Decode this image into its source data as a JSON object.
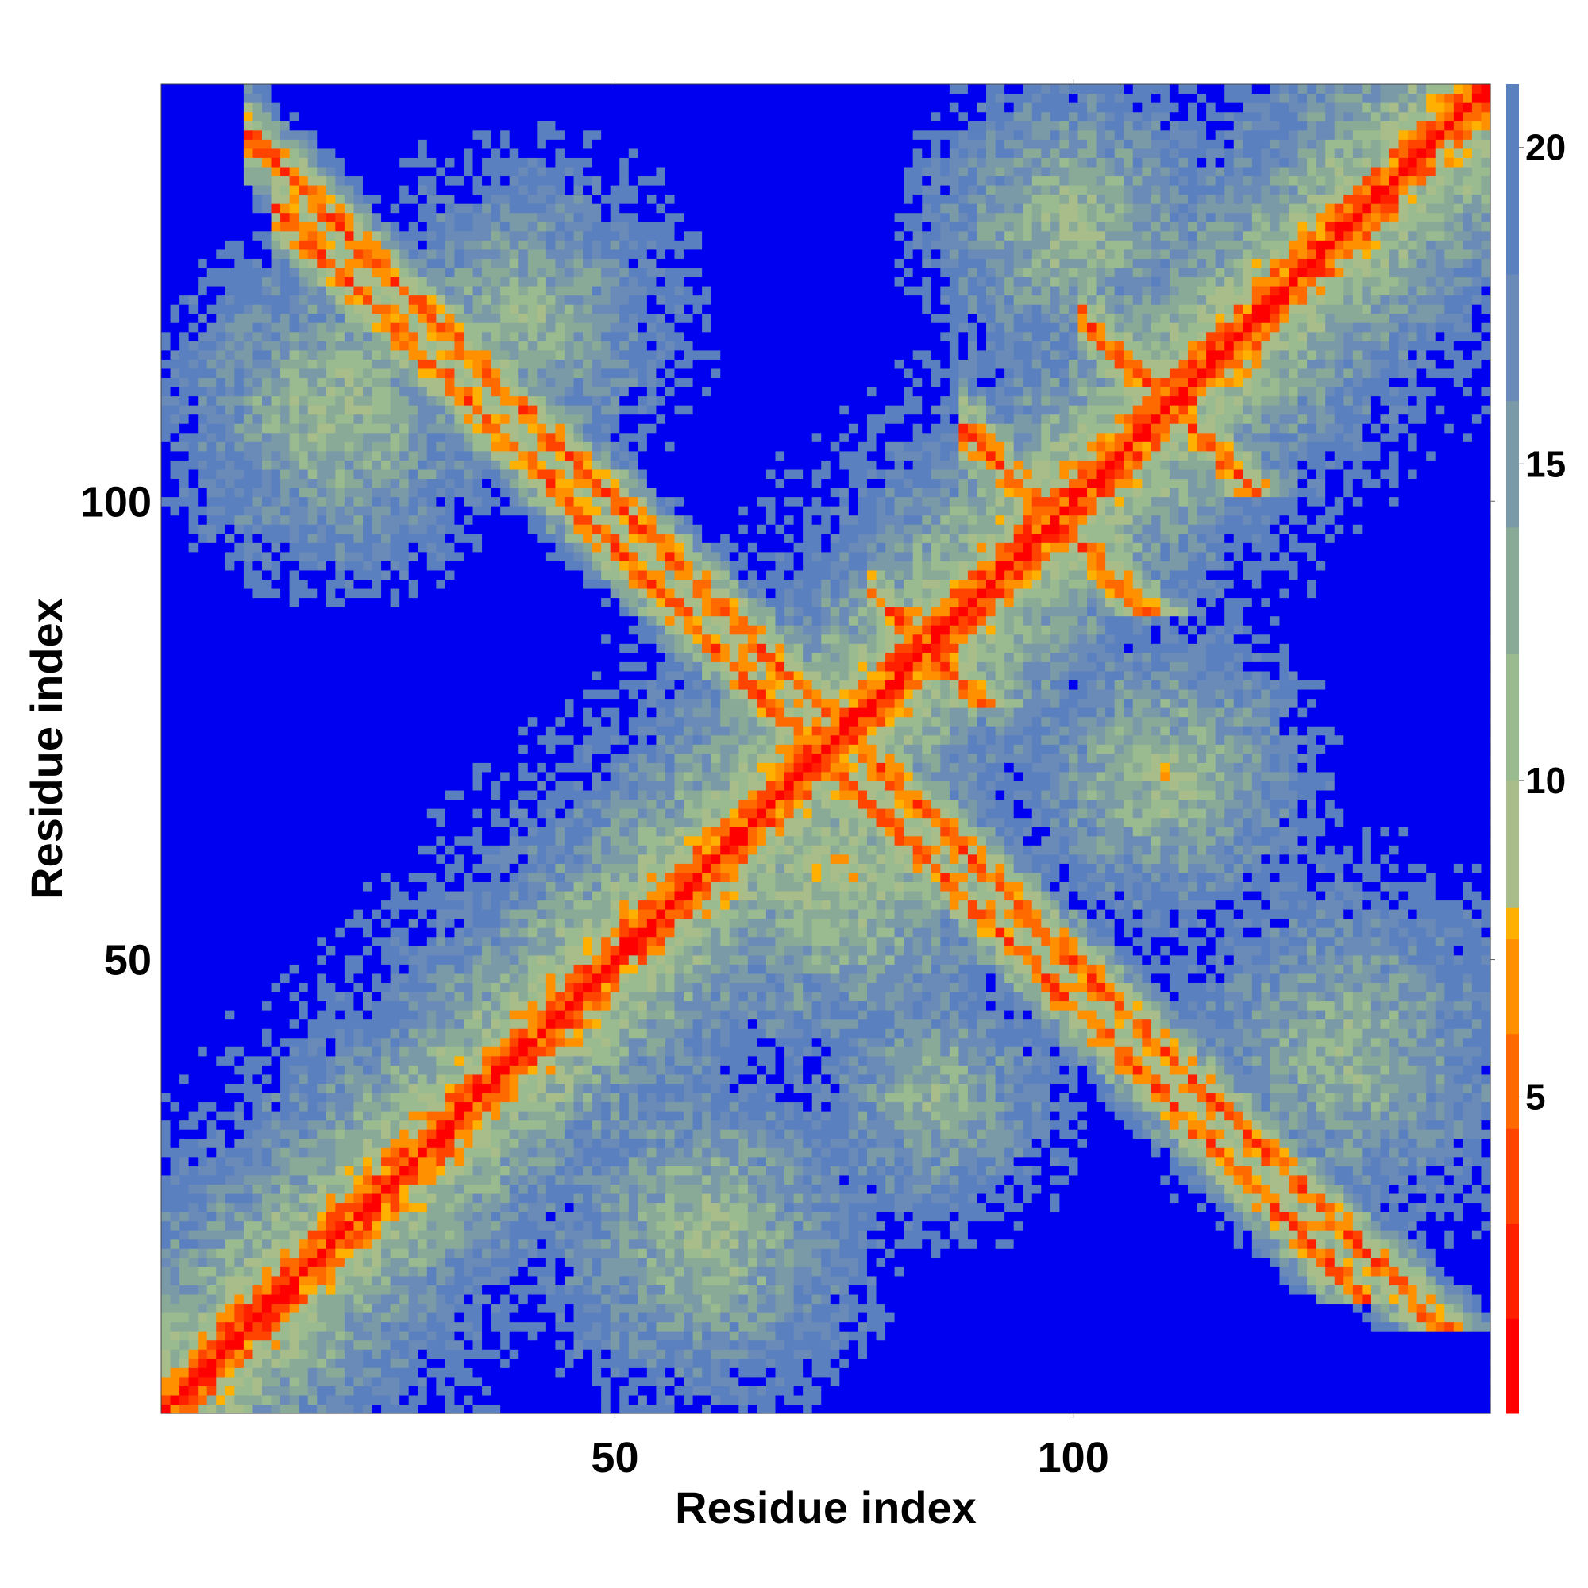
{
  "chart_data": {
    "type": "heatmap",
    "title": "",
    "xlabel": "Residue index",
    "ylabel": "Residue index",
    "n_residues": 145,
    "xlim": [
      1,
      145
    ],
    "ylim": [
      1,
      145
    ],
    "x_ticks": [
      50,
      100
    ],
    "y_ticks": [
      50,
      100
    ],
    "colorbar": {
      "range": [
        0,
        21
      ],
      "ticks": [
        5,
        10,
        15,
        20
      ],
      "levels": [
        {
          "max": 1.5,
          "color": "#ff0000"
        },
        {
          "max": 3,
          "color": "#ff2000"
        },
        {
          "max": 4.5,
          "color": "#ff4400"
        },
        {
          "max": 6,
          "color": "#ff6a00"
        },
        {
          "max": 7.5,
          "color": "#ff9000"
        },
        {
          "max": 8,
          "color": "#ffb000"
        },
        {
          "max": 10,
          "color": "#a8bd8a"
        },
        {
          "max": 12,
          "color": "#9aba90"
        },
        {
          "max": 14,
          "color": "#8aaa98"
        },
        {
          "max": 16,
          "color": "#7a9aa8"
        },
        {
          "max": 18,
          "color": "#6a8ab8"
        },
        {
          "max": 21,
          "color": "#5a80c0"
        }
      ],
      "beyond_color": "#0000f0"
    },
    "contact_bands": {
      "diagonal": [
        {
          "center": 0,
          "width": 1
        }
      ],
      "antidiagonal": [
        {
          "center": 221,
          "range": [
            106,
            120
          ],
          "width": 1.2
        },
        {
          "center": 196,
          "range": [
            88,
            108
          ],
          "width": 1.2
        },
        {
          "center": 168,
          "range": [
            80,
            90
          ],
          "width": 1.4
        },
        {
          "center": 145,
          "range": [
            117,
            132
          ],
          "width": 1.2
        },
        {
          "center": 150,
          "range": [
            10,
            20
          ],
          "width": 1.4
        }
      ]
    }
  }
}
